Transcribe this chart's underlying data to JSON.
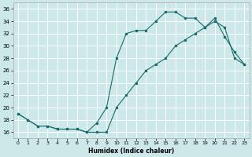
{
  "title": "",
  "xlabel": "Humidex (Indice chaleur)",
  "ylabel": "",
  "bg_color": "#cde8e8",
  "grid_color": "#ffffff",
  "line_color": "#1a6b6b",
  "xlim": [
    -0.5,
    23.5
  ],
  "ylim": [
    15,
    37
  ],
  "xticks": [
    0,
    1,
    2,
    3,
    4,
    5,
    6,
    7,
    8,
    9,
    10,
    11,
    12,
    13,
    14,
    15,
    16,
    17,
    18,
    19,
    20,
    21,
    22,
    23
  ],
  "yticks": [
    16,
    18,
    20,
    22,
    24,
    26,
    28,
    30,
    32,
    34,
    36
  ],
  "upper_x": [
    0,
    1,
    2,
    3,
    4,
    5,
    6,
    7,
    8,
    9,
    10,
    11,
    12,
    13,
    14,
    15,
    16,
    17,
    18,
    19,
    20,
    21,
    22,
    23
  ],
  "upper_y": [
    19,
    18,
    17,
    17,
    16.5,
    16.5,
    16.5,
    16,
    17.5,
    20,
    28,
    32,
    32.5,
    32.5,
    34,
    35.5,
    35.5,
    34.5,
    34.5,
    33,
    34.5,
    31.5,
    29,
    27
  ],
  "lower_x": [
    0,
    1,
    2,
    3,
    4,
    5,
    6,
    7,
    8,
    9,
    10,
    11,
    12,
    13,
    14,
    15,
    16,
    17,
    18,
    19,
    20,
    21,
    22,
    23
  ],
  "lower_y": [
    19,
    18,
    17,
    17,
    16.5,
    16.5,
    16.5,
    16,
    16,
    16,
    20,
    22,
    24,
    26,
    27,
    28,
    30,
    31,
    32,
    33,
    34,
    33,
    28,
    27
  ],
  "xlabel_fontsize": 5.5,
  "tick_fontsize": 4.5
}
